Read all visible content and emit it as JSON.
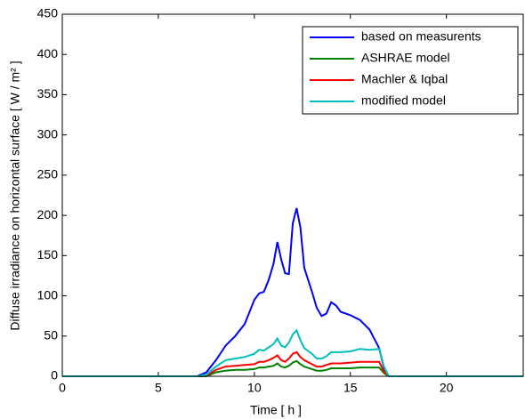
{
  "chart_data": {
    "type": "line",
    "xlabel": "Time [ h ]",
    "ylabel": "Diffuse irradiance on horizontal surface [ W / m² ]",
    "x": [
      0,
      7,
      7.5,
      8,
      8.5,
      9,
      9.5,
      10,
      10.25,
      10.5,
      10.75,
      11,
      11.2,
      11.4,
      11.6,
      11.8,
      12,
      12.2,
      12.4,
      12.6,
      13,
      13.25,
      13.5,
      13.75,
      14,
      14.25,
      14.5,
      15,
      15.5,
      16,
      16.5,
      16.75,
      17,
      24
    ],
    "series": [
      {
        "name": "based on measurents",
        "color": "#0000ff",
        "values": [
          0,
          0,
          5,
          20,
          38,
          50,
          65,
          95,
          103,
          105,
          120,
          140,
          167,
          145,
          128,
          127,
          190,
          209,
          185,
          135,
          105,
          85,
          75,
          78,
          92,
          88,
          80,
          76,
          70,
          58,
          35,
          10,
          0,
          0
        ]
      },
      {
        "name": "ASHRAE model",
        "color": "#008000",
        "values": [
          0,
          0,
          0,
          5,
          7,
          8,
          8,
          9,
          11,
          11,
          12,
          13,
          16,
          12,
          11,
          13,
          17,
          19,
          15,
          12,
          9,
          7,
          7,
          8,
          10,
          10,
          10,
          10,
          11,
          11,
          11,
          4,
          0,
          0
        ]
      },
      {
        "name": "Machler & Iqbal",
        "color": "#ff0000",
        "values": [
          0,
          0,
          1,
          8,
          12,
          13,
          14,
          15,
          18,
          18,
          20,
          23,
          26,
          20,
          18,
          22,
          28,
          30,
          24,
          20,
          15,
          12,
          12,
          14,
          16,
          16,
          16,
          17,
          18,
          18,
          18,
          6,
          0,
          0
        ]
      },
      {
        "name": "modified model",
        "color": "#00bfbf",
        "values": [
          0,
          0,
          2,
          12,
          20,
          22,
          24,
          28,
          33,
          32,
          36,
          40,
          47,
          38,
          36,
          42,
          52,
          57,
          45,
          35,
          28,
          22,
          22,
          25,
          30,
          30,
          30,
          31,
          34,
          33,
          34,
          12,
          0,
          0
        ]
      }
    ],
    "xlim": [
      0,
      24
    ],
    "xticks": [
      0,
      5,
      10,
      15,
      20
    ],
    "ylim": [
      0,
      450
    ],
    "yticks": [
      0,
      50,
      100,
      150,
      200,
      250,
      300,
      350,
      400,
      450
    ],
    "legend": "top-right",
    "grid": false
  }
}
